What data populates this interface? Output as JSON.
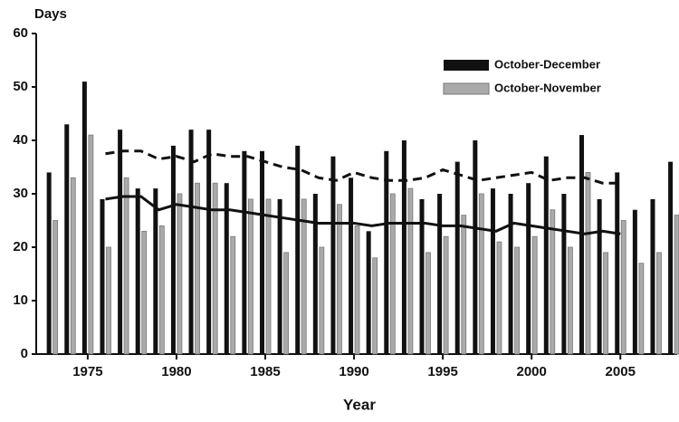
{
  "chart_data": {
    "type": "bar",
    "y_axis_label": "Days",
    "x_axis_label": "Year",
    "x": [
      1973,
      1974,
      1975,
      1976,
      1977,
      1978,
      1979,
      1980,
      1981,
      1982,
      1983,
      1984,
      1985,
      1986,
      1987,
      1988,
      1989,
      1990,
      1991,
      1992,
      1993,
      1994,
      1995,
      1996,
      1997,
      1998,
      1999,
      2000,
      2001,
      2002,
      2003,
      2004,
      2005,
      2006,
      2007,
      2008
    ],
    "series": [
      {
        "name": "October-December",
        "type": "bar",
        "color": "#111111",
        "values": [
          34,
          43,
          51,
          29,
          42,
          31,
          31,
          39,
          42,
          42,
          32,
          38,
          38,
          29,
          39,
          30,
          37,
          33,
          23,
          38,
          40,
          29,
          30,
          36,
          40,
          31,
          30,
          32,
          37,
          30,
          41,
          29,
          34,
          27,
          29,
          36
        ]
      },
      {
        "name": "October-November",
        "type": "bar",
        "color": "#aaaaaa",
        "values": [
          25,
          33,
          41,
          20,
          33,
          23,
          24,
          30,
          32,
          32,
          22,
          29,
          29,
          19,
          29,
          20,
          28,
          24,
          18,
          30,
          31,
          19,
          22,
          26,
          30,
          21,
          20,
          22,
          27,
          20,
          34,
          19,
          25,
          17,
          19,
          26
        ]
      },
      {
        "type": "line",
        "dashed": true,
        "color": "#111111",
        "values": [
          null,
          null,
          null,
          37.5,
          38,
          38,
          36.5,
          37,
          36,
          37.5,
          37,
          37,
          36,
          35,
          34.5,
          33,
          32.5,
          34,
          33,
          32.5,
          32.5,
          33,
          34.5,
          33.5,
          32.5,
          33,
          33.5,
          34,
          32.5,
          33,
          33,
          32,
          32,
          null,
          null,
          null
        ]
      },
      {
        "type": "line",
        "dashed": false,
        "color": "#111111",
        "values": [
          null,
          null,
          null,
          29,
          29.5,
          29.5,
          27,
          28,
          27.5,
          27,
          27,
          26.5,
          26,
          25.5,
          25,
          24.5,
          24.5,
          24.5,
          24,
          24.5,
          24.5,
          24.5,
          24,
          24,
          23.5,
          23,
          24.5,
          24,
          23.5,
          23,
          22.5,
          23,
          22.5,
          null,
          null,
          null
        ]
      }
    ],
    "xlim": [
      1972.1,
      2008.2
    ],
    "xticks": [
      1975,
      1980,
      1985,
      1990,
      1995,
      2000,
      2005
    ],
    "ylim": [
      0,
      60
    ],
    "yticks": [
      0,
      10,
      20,
      30,
      40,
      50,
      60
    ],
    "grid": false,
    "legend": "upper right"
  }
}
